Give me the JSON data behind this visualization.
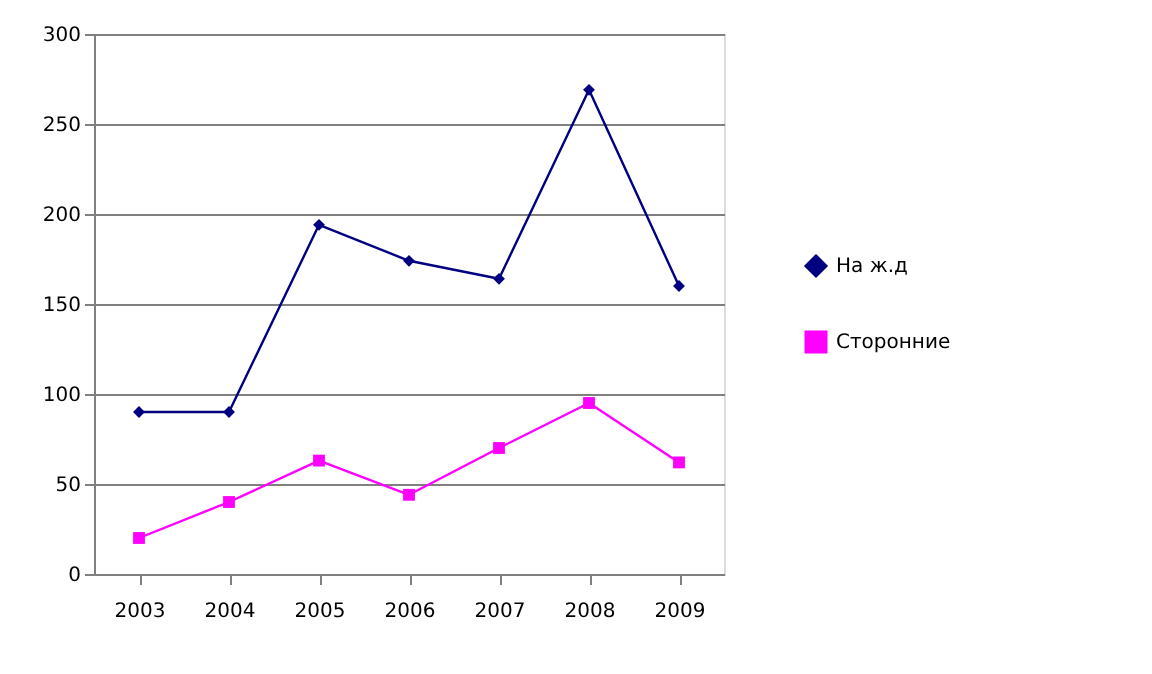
{
  "chart_data": {
    "type": "line",
    "categories": [
      "2003",
      "2004",
      "2005",
      "2006",
      "2007",
      "2008",
      "2009"
    ],
    "series": [
      {
        "name": "На ж.д",
        "color": "#000080",
        "marker": "diamond",
        "values": [
          90,
          90,
          194,
          174,
          164,
          269,
          160
        ]
      },
      {
        "name": "Сторонние",
        "color": "#ff00ff",
        "marker": "square",
        "values": [
          20,
          40,
          63,
          44,
          70,
          95,
          62
        ]
      }
    ],
    "ylim": [
      0,
      300
    ],
    "yticks": [
      0,
      50,
      100,
      150,
      200,
      250,
      300
    ],
    "grid": "y",
    "legend": "right",
    "line_style": "solid"
  }
}
